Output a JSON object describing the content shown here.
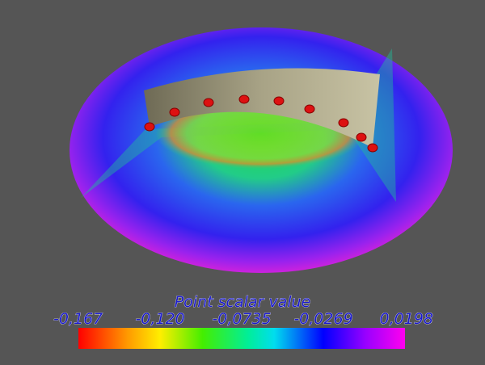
{
  "colorbar": {
    "title": "Point scalar value",
    "labels": [
      "-0,167",
      "-0,120",
      "-0,0735",
      "-0,0269",
      "0,0198"
    ]
  }
}
